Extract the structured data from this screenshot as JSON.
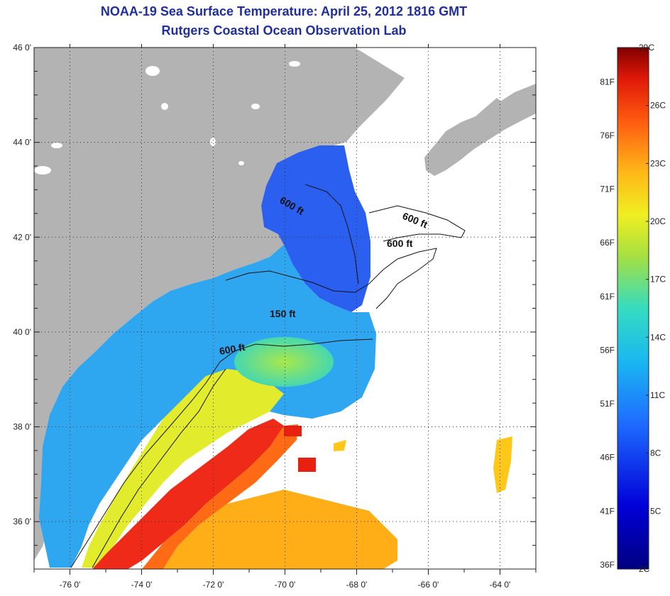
{
  "title": {
    "line1": "NOAA-19 Sea Surface Temperature:  April 25, 2012 1816 GMT",
    "line2": "Rutgers Coastal Ocean Observation Lab"
  },
  "colors": {
    "title": "#1f2f9f",
    "land": "#b3b3b3",
    "no_data": "#ffffff",
    "contour": "#111111"
  },
  "map": {
    "lon_range": [
      -77,
      -63
    ],
    "lat_range": [
      35,
      46
    ],
    "lat_ticks": [
      {
        "value": 46,
        "label": "46 0'"
      },
      {
        "value": 44,
        "label": "44 0'"
      },
      {
        "value": 42,
        "label": "42 0'"
      },
      {
        "value": 40,
        "label": "40 0'"
      },
      {
        "value": 38,
        "label": "38 0'"
      },
      {
        "value": 36,
        "label": "36 0'"
      }
    ],
    "lon_ticks": [
      {
        "value": -76,
        "label": "-76 0'"
      },
      {
        "value": -74,
        "label": "-74 0'"
      },
      {
        "value": -72,
        "label": "-72 0'"
      },
      {
        "value": -70,
        "label": "-70 0'"
      },
      {
        "value": -68,
        "label": "-68 0'"
      },
      {
        "value": -66,
        "label": "-66 0'"
      },
      {
        "value": -64,
        "label": "-64 0'"
      }
    ],
    "grid": "dotted",
    "contour_labels": [
      "600 ft",
      "600 ft",
      "600 ft",
      "150 ft",
      "600 ft"
    ]
  },
  "colorbar": {
    "range_c": [
      2,
      29
    ],
    "celsius_labels": [
      "29C",
      "26C",
      "23C",
      "20C",
      "17C",
      "14C",
      "11C",
      "8C",
      "5C",
      "2C"
    ],
    "fahrenheit_labels": [
      "81F",
      "76F",
      "71F",
      "66F",
      "61F",
      "56F",
      "51F",
      "46F",
      "41F",
      "36F"
    ]
  }
}
